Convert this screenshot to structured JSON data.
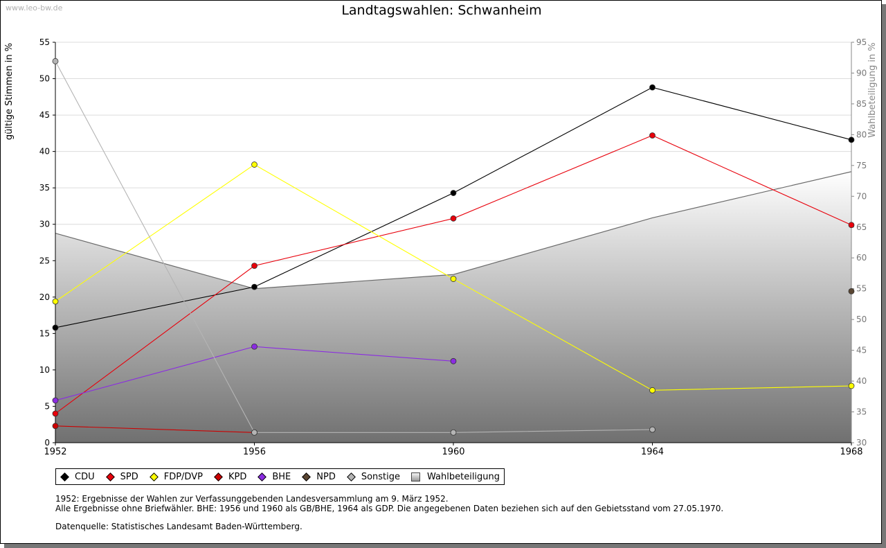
{
  "watermark": "www.leo-bw.de",
  "chart_data": {
    "type": "line",
    "title": "Landtagswahlen: Schwanheim",
    "ylabel": "gültige Stimmen in %",
    "y2label": "Wahlbeteiligung in %",
    "ylim": [
      0,
      55
    ],
    "y2lim": [
      30,
      95
    ],
    "x": [
      1952,
      1956,
      1960,
      1964,
      1968
    ],
    "x_ticks": [
      "1952",
      "1956",
      "1960",
      "1964",
      "1968"
    ],
    "y_ticks": [
      "0",
      "5",
      "10",
      "15",
      "20",
      "25",
      "30",
      "35",
      "40",
      "45",
      "50",
      "55"
    ],
    "y2_ticks": [
      "30",
      "35",
      "40",
      "45",
      "50",
      "55",
      "60",
      "65",
      "70",
      "75",
      "80",
      "85",
      "90",
      "95"
    ],
    "grid": true,
    "legend_position": "bottom",
    "series": [
      {
        "name": "CDU",
        "color": "#000000",
        "values": [
          15.8,
          21.4,
          34.3,
          48.8,
          41.6
        ]
      },
      {
        "name": "SPD",
        "color": "#e8000b",
        "values": [
          4.0,
          24.3,
          30.8,
          42.2,
          29.9
        ]
      },
      {
        "name": "FDP/DVP",
        "color": "#ffff00",
        "values": [
          19.4,
          38.2,
          22.5,
          7.2,
          7.8
        ]
      },
      {
        "name": "KPD",
        "color": "#cc0000",
        "values": [
          2.3,
          1.4,
          null,
          null,
          null
        ]
      },
      {
        "name": "BHE",
        "color": "#8b2be2",
        "values": [
          5.8,
          13.2,
          11.2,
          null,
          null
        ]
      },
      {
        "name": "NPD",
        "color": "#5a4632",
        "values": [
          null,
          null,
          null,
          null,
          20.8
        ]
      },
      {
        "name": "Sonstige",
        "color": "#b4b4b4",
        "values": [
          52.4,
          1.4,
          1.4,
          1.8,
          null
        ]
      }
    ],
    "turnout": {
      "name": "Wahlbeteiligung",
      "axis": "right",
      "values": [
        64.0,
        55.0,
        57.3,
        66.5,
        74.0
      ]
    }
  },
  "notes": {
    "line1": "1952: Ergebnisse der Wahlen zur Verfassunggebenden Landesversammlung am 9. März 1952.",
    "line2": "Alle Ergebnisse ohne Briefwähler. BHE: 1956 und 1960 als GB/BHE, 1964 als GDP. Die angegebenen Daten beziehen sich auf den Gebietsstand vom 27.05.1970.",
    "line3": "Datenquelle: Statistisches Landesamt Baden-Württemberg."
  }
}
